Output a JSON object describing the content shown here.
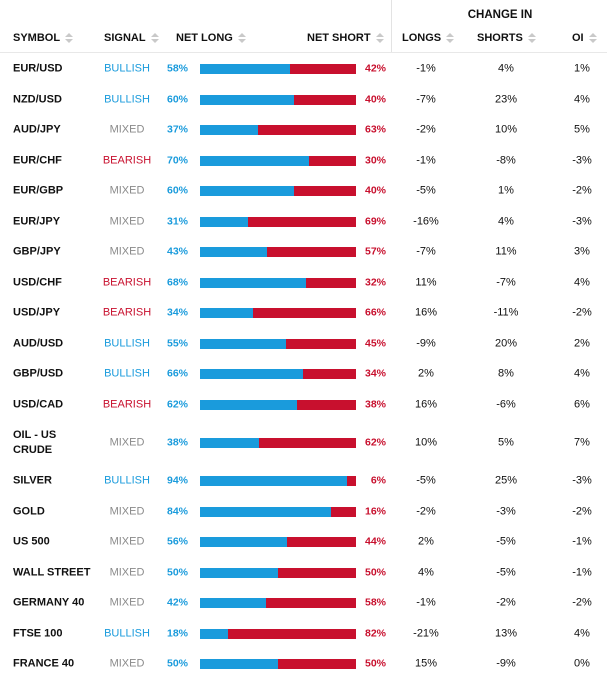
{
  "headers": {
    "change_in": "CHANGE IN",
    "symbol": "SYMBOL",
    "signal": "SIGNAL",
    "net_long": "NET LONG",
    "net_short": "NET SHORT",
    "longs": "LONGS",
    "shorts": "SHORTS",
    "oi": "OI"
  },
  "colors": {
    "long": "#1a9bdc",
    "short": "#c8102e",
    "mixed": "#8a8a8a"
  },
  "rows": [
    {
      "symbol": "EUR/USD",
      "signal": "BULLISH",
      "net_long": "58%",
      "net_short": "42%",
      "long_frac": 0.58,
      "longs": "-1%",
      "shorts": "4%",
      "oi": "1%"
    },
    {
      "symbol": "NZD/USD",
      "signal": "BULLISH",
      "net_long": "60%",
      "net_short": "40%",
      "long_frac": 0.6,
      "longs": "-7%",
      "shorts": "23%",
      "oi": "4%"
    },
    {
      "symbol": "AUD/JPY",
      "signal": "MIXED",
      "net_long": "37%",
      "net_short": "63%",
      "long_frac": 0.37,
      "longs": "-2%",
      "shorts": "10%",
      "oi": "5%"
    },
    {
      "symbol": "EUR/CHF",
      "signal": "BEARISH",
      "net_long": "70%",
      "net_short": "30%",
      "long_frac": 0.7,
      "longs": "-1%",
      "shorts": "-8%",
      "oi": "-3%"
    },
    {
      "symbol": "EUR/GBP",
      "signal": "MIXED",
      "net_long": "60%",
      "net_short": "40%",
      "long_frac": 0.6,
      "longs": "-5%",
      "shorts": "1%",
      "oi": "-2%"
    },
    {
      "symbol": "EUR/JPY",
      "signal": "MIXED",
      "net_long": "31%",
      "net_short": "69%",
      "long_frac": 0.31,
      "longs": "-16%",
      "shorts": "4%",
      "oi": "-3%"
    },
    {
      "symbol": "GBP/JPY",
      "signal": "MIXED",
      "net_long": "43%",
      "net_short": "57%",
      "long_frac": 0.43,
      "longs": "-7%",
      "shorts": "11%",
      "oi": "3%"
    },
    {
      "symbol": "USD/CHF",
      "signal": "BEARISH",
      "net_long": "68%",
      "net_short": "32%",
      "long_frac": 0.68,
      "longs": "11%",
      "shorts": "-7%",
      "oi": "4%"
    },
    {
      "symbol": "USD/JPY",
      "signal": "BEARISH",
      "net_long": "34%",
      "net_short": "66%",
      "long_frac": 0.34,
      "longs": "16%",
      "shorts": "-11%",
      "oi": "-2%"
    },
    {
      "symbol": "AUD/USD",
      "signal": "BULLISH",
      "net_long": "55%",
      "net_short": "45%",
      "long_frac": 0.55,
      "longs": "-9%",
      "shorts": "20%",
      "oi": "2%"
    },
    {
      "symbol": "GBP/USD",
      "signal": "BULLISH",
      "net_long": "66%",
      "net_short": "34%",
      "long_frac": 0.66,
      "longs": "2%",
      "shorts": "8%",
      "oi": "4%"
    },
    {
      "symbol": "USD/CAD",
      "signal": "BEARISH",
      "net_long": "62%",
      "net_short": "38%",
      "long_frac": 0.62,
      "longs": "16%",
      "shorts": "-6%",
      "oi": "6%"
    },
    {
      "symbol": "OIL - US CRUDE",
      "signal": "MIXED",
      "net_long": "38%",
      "net_short": "62%",
      "long_frac": 0.38,
      "longs": "10%",
      "shorts": "5%",
      "oi": "7%"
    },
    {
      "symbol": "SILVER",
      "signal": "BULLISH",
      "net_long": "94%",
      "net_short": "6%",
      "long_frac": 0.94,
      "longs": "-5%",
      "shorts": "25%",
      "oi": "-3%"
    },
    {
      "symbol": "GOLD",
      "signal": "MIXED",
      "net_long": "84%",
      "net_short": "16%",
      "long_frac": 0.84,
      "longs": "-2%",
      "shorts": "-3%",
      "oi": "-2%"
    },
    {
      "symbol": "US 500",
      "signal": "MIXED",
      "net_long": "56%",
      "net_short": "44%",
      "long_frac": 0.56,
      "longs": "2%",
      "shorts": "-5%",
      "oi": "-1%"
    },
    {
      "symbol": "WALL STREET",
      "signal": "MIXED",
      "net_long": "50%",
      "net_short": "50%",
      "long_frac": 0.5,
      "longs": "4%",
      "shorts": "-5%",
      "oi": "-1%"
    },
    {
      "symbol": "GERMANY 40",
      "signal": "MIXED",
      "net_long": "42%",
      "net_short": "58%",
      "long_frac": 0.42,
      "longs": "-1%",
      "shorts": "-2%",
      "oi": "-2%"
    },
    {
      "symbol": "FTSE 100",
      "signal": "BULLISH",
      "net_long": "18%",
      "net_short": "82%",
      "long_frac": 0.18,
      "longs": "-21%",
      "shorts": "13%",
      "oi": "4%"
    },
    {
      "symbol": "FRANCE 40",
      "signal": "MIXED",
      "net_long": "50%",
      "net_short": "50%",
      "long_frac": 0.5,
      "longs": "15%",
      "shorts": "-9%",
      "oi": "0%"
    }
  ]
}
